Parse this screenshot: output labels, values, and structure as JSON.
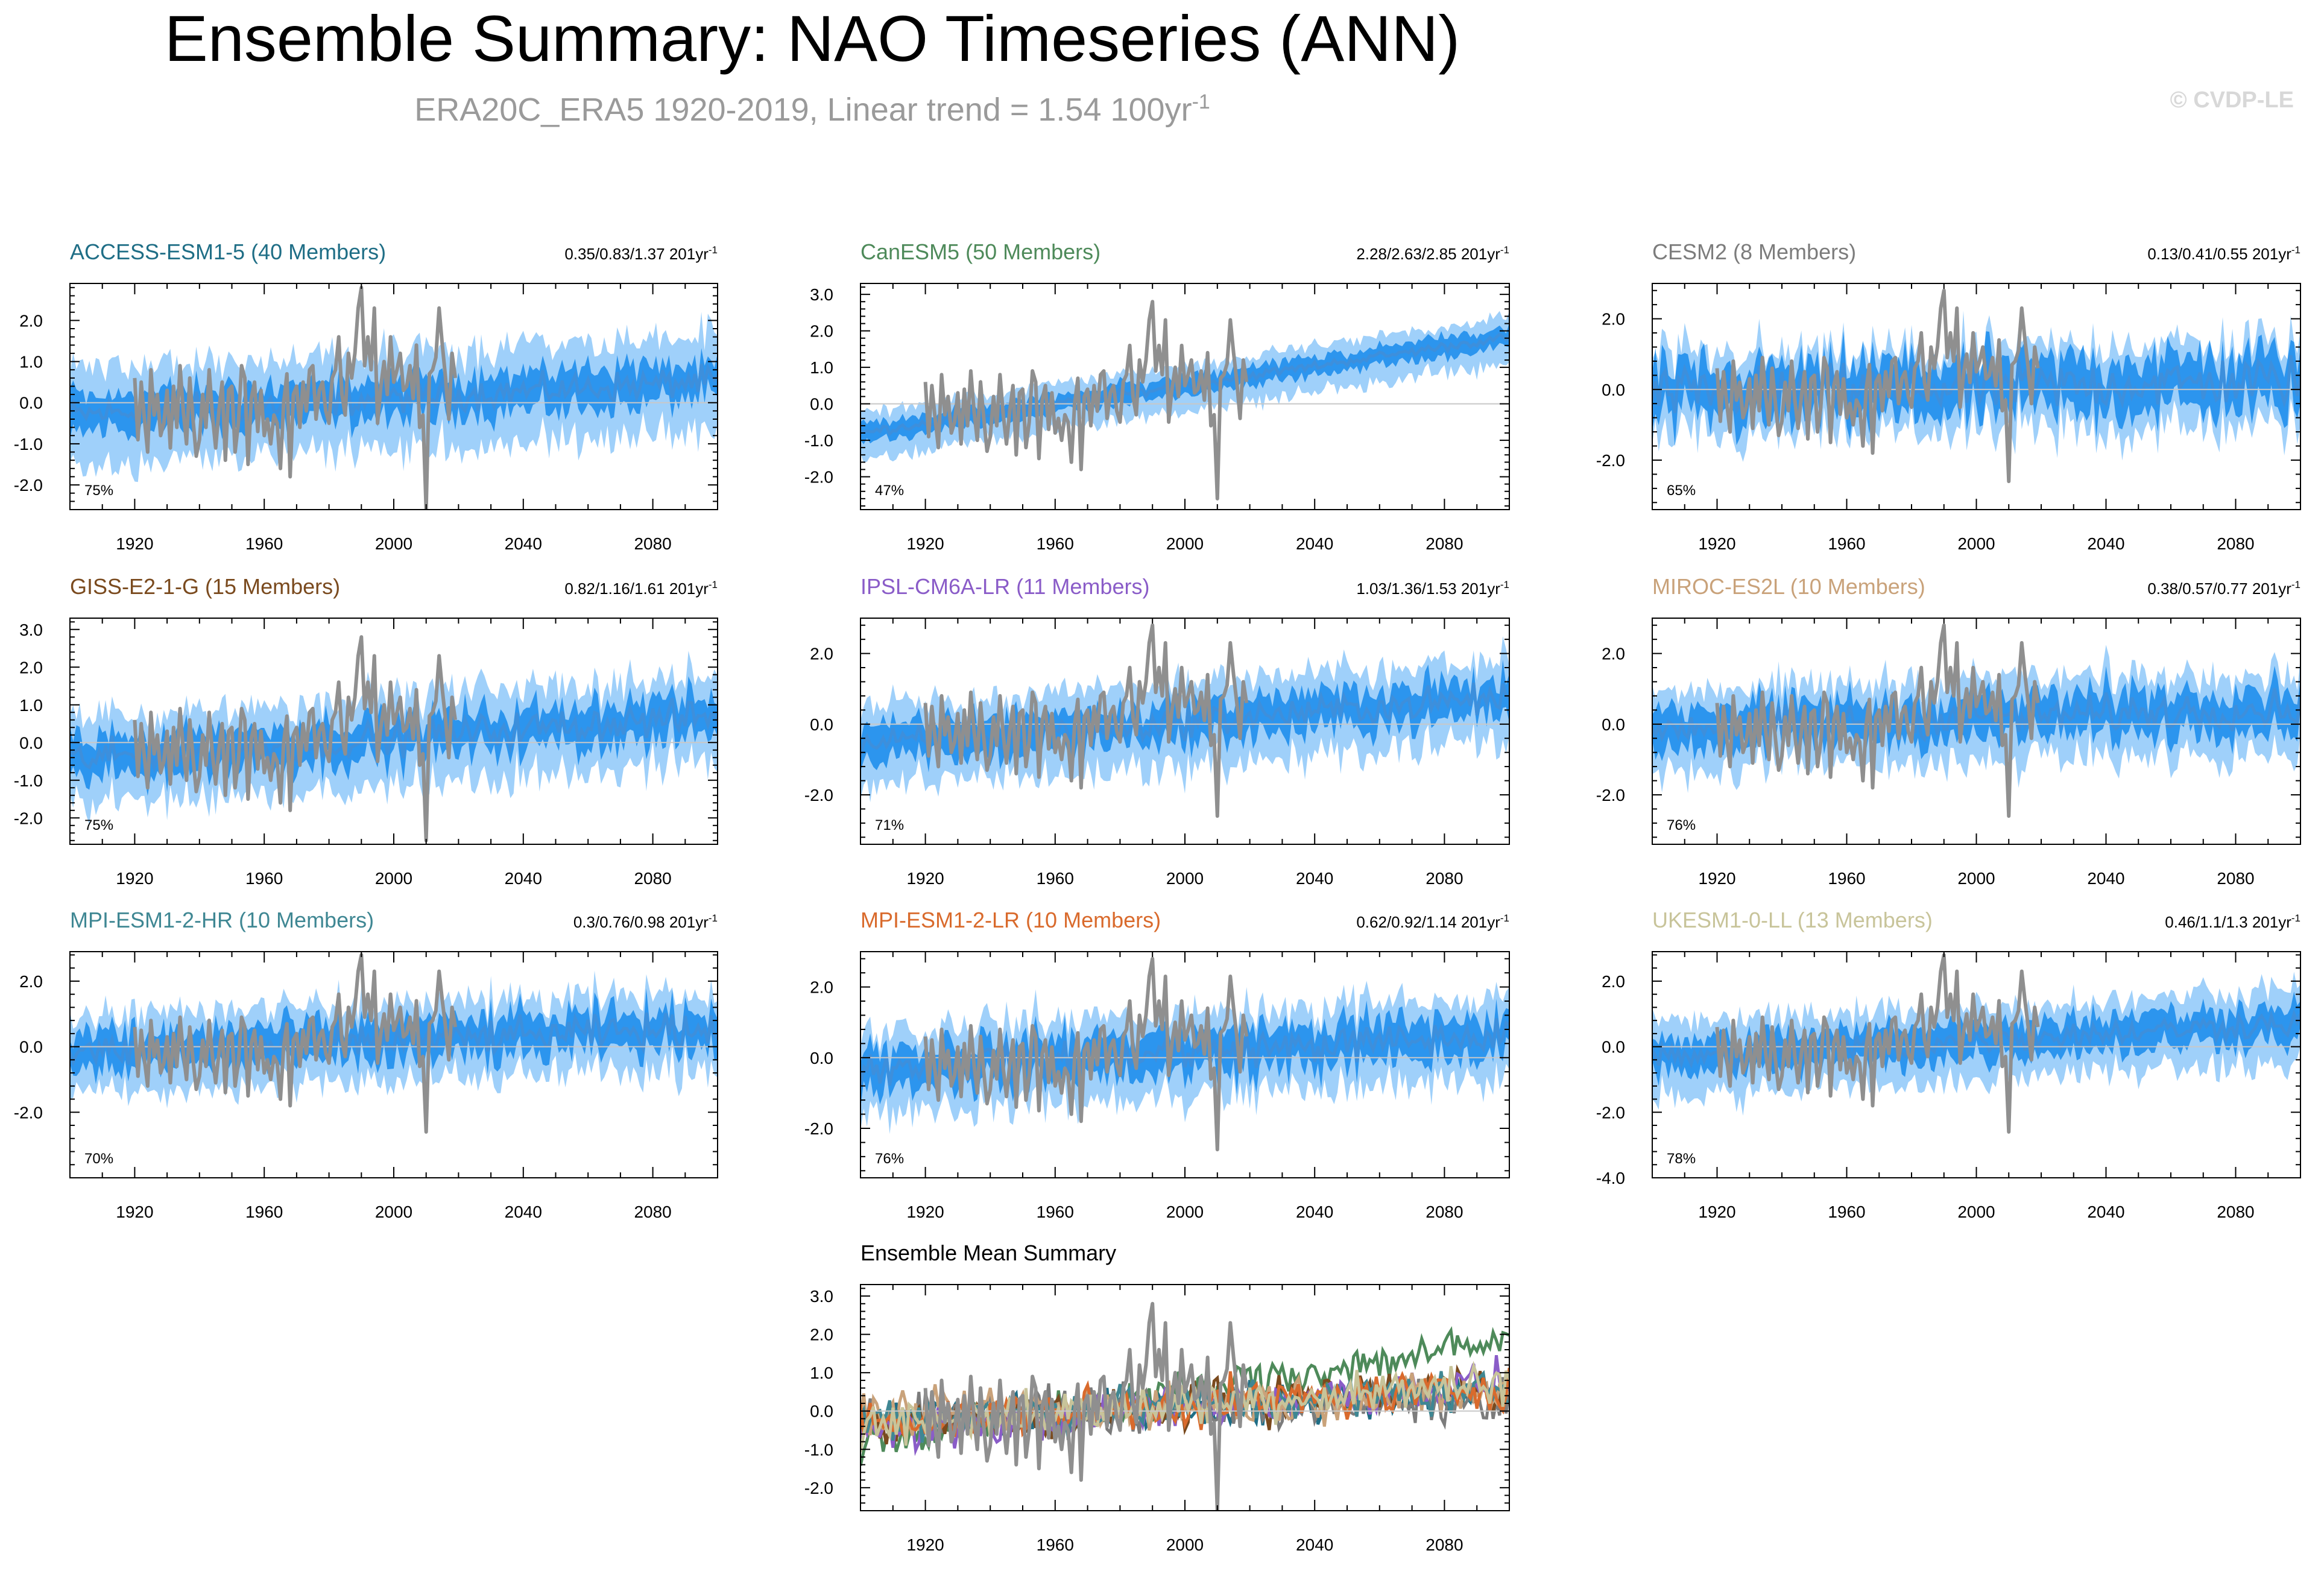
{
  "header": {
    "title": "Ensemble Summary: NAO Timeseries (ANN)",
    "subtitle": "ERA20C_ERA5 1920-2019, Linear trend = 1.54 100yr",
    "subtitle_exp": "-1",
    "copyright": "© CVDP-LE"
  },
  "colors": {
    "band_outer": "#9fd0fa",
    "band_inner": "#2c95ee",
    "mean_line": "#3d8fdc",
    "obs_line": "#8f8f8f"
  },
  "chart_data": [
    {
      "type": "area",
      "title": "ACCESS-ESM1-5 (40 Members)",
      "title_color": "#1f6e86",
      "trend": "0.35/0.83/1.37 201yr",
      "trend_exp": "-1",
      "percent": "75%",
      "xlim": [
        1900,
        2100
      ],
      "ylim": [
        -2.6,
        2.9
      ],
      "yticks": [
        -2,
        -1,
        0,
        1,
        2
      ],
      "ytick_labels": [
        "-2.0",
        "-1.0",
        "0.0",
        "1.0",
        "2.0"
      ],
      "xticks": [
        1920,
        1960,
        2000,
        2040,
        2080
      ],
      "ens_trend": 0.83,
      "ens_start": -0.3,
      "spread": 1.1,
      "inner": 0.45,
      "noise": 0.18,
      "zero_line": true
    },
    {
      "type": "area",
      "title": "CanESM5 (50 Members)",
      "title_color": "#4e8a5a",
      "trend": "2.28/2.63/2.85 201yr",
      "trend_exp": "-1",
      "percent": "47%",
      "xlim": [
        1900,
        2100
      ],
      "ylim": [
        -2.9,
        3.3
      ],
      "yticks": [
        -2,
        -1,
        0,
        1,
        2,
        3
      ],
      "ytick_labels": [
        "-2.0",
        "-1.0",
        "0.0",
        "1.0",
        "2.0",
        "3.0"
      ],
      "xticks": [
        1920,
        1960,
        2000,
        2040,
        2080
      ],
      "ens_trend": 2.63,
      "ens_start": -0.8,
      "spread": 0.55,
      "inner": 0.25,
      "noise": 0.06,
      "zero_line": true
    },
    {
      "type": "area",
      "title": "CESM2 (8 Members)",
      "title_color": "#7c7c7c",
      "trend": "0.13/0.41/0.55 201yr",
      "trend_exp": "-1",
      "percent": "65%",
      "xlim": [
        1900,
        2100
      ],
      "ylim": [
        -3.4,
        3.0
      ],
      "yticks": [
        -2,
        0,
        2
      ],
      "ytick_labels": [
        "-2.0",
        "0.0",
        "2.0"
      ],
      "xticks": [
        1920,
        1960,
        2000,
        2040,
        2080
      ],
      "ens_trend": 0.41,
      "ens_start": -0.15,
      "spread": 1.1,
      "inner": 0.7,
      "noise": 0.35,
      "zero_line": true
    },
    {
      "type": "area",
      "title": "GISS-E2-1-G (15 Members)",
      "title_color": "#7a4a1e",
      "trend": "0.82/1.16/1.61 201yr",
      "trend_exp": "-1",
      "percent": "75%",
      "xlim": [
        1900,
        2100
      ],
      "ylim": [
        -2.7,
        3.3
      ],
      "yticks": [
        -2,
        -1,
        0,
        1,
        2,
        3
      ],
      "ytick_labels": [
        "-2.0",
        "-1.0",
        "0.0",
        "1.0",
        "2.0",
        "3.0"
      ],
      "xticks": [
        1920,
        1960,
        2000,
        2040,
        2080
      ],
      "ens_trend": 1.16,
      "ens_start": -0.45,
      "spread": 1.1,
      "inner": 0.5,
      "noise": 0.22,
      "zero_line": true
    },
    {
      "type": "area",
      "title": "IPSL-CM6A-LR (11 Members)",
      "title_color": "#8a5cc8",
      "trend": "1.03/1.36/1.53 201yr",
      "trend_exp": "-1",
      "percent": "71%",
      "xlim": [
        1900,
        2100
      ],
      "ylim": [
        -3.4,
        3.0
      ],
      "yticks": [
        -2,
        0,
        2
      ],
      "ytick_labels": [
        "-2.0",
        "0.0",
        "2.0"
      ],
      "xticks": [
        1920,
        1960,
        2000,
        2040,
        2080
      ],
      "ens_trend": 1.36,
      "ens_start": -0.6,
      "spread": 1.1,
      "inner": 0.5,
      "noise": 0.22,
      "zero_line": true
    },
    {
      "type": "area",
      "title": "MIROC-ES2L (10 Members)",
      "title_color": "#c9a27a",
      "trend": "0.38/0.57/0.77 201yr",
      "trend_exp": "-1",
      "percent": "76%",
      "xlim": [
        1900,
        2100
      ],
      "ylim": [
        -3.4,
        3.0
      ],
      "yticks": [
        -2,
        0,
        2
      ],
      "ytick_labels": [
        "-2.0",
        "0.0",
        "2.0"
      ],
      "xticks": [
        1920,
        1960,
        2000,
        2040,
        2080
      ],
      "ens_trend": 0.57,
      "ens_start": -0.1,
      "spread": 1.1,
      "inner": 0.55,
      "noise": 0.25,
      "zero_line": true
    },
    {
      "type": "area",
      "title": "MPI-ESM1-2-HR (10 Members)",
      "title_color": "#3f8793",
      "trend": "0.3/0.76/0.98 201yr",
      "trend_exp": "-1",
      "percent": "70%",
      "xlim": [
        1900,
        2100
      ],
      "ylim": [
        -4.0,
        2.9
      ],
      "yticks": [
        -2,
        0,
        2
      ],
      "ytick_labels": [
        "-2.0",
        "0.0",
        "2.0"
      ],
      "xticks": [
        1920,
        1960,
        2000,
        2040,
        2080
      ],
      "ens_trend": 0.76,
      "ens_start": -0.2,
      "spread": 1.1,
      "inner": 0.55,
      "noise": 0.25,
      "zero_line": true
    },
    {
      "type": "area",
      "title": "MPI-ESM1-2-LR (10 Members)",
      "title_color": "#d96a2c",
      "trend": "0.62/0.92/1.14 201yr",
      "trend_exp": "-1",
      "percent": "76%",
      "xlim": [
        1900,
        2100
      ],
      "ylim": [
        -3.4,
        3.0
      ],
      "yticks": [
        -2,
        0,
        2
      ],
      "ytick_labels": [
        "-2.0",
        "0.0",
        "2.0"
      ],
      "xticks": [
        1920,
        1960,
        2000,
        2040,
        2080
      ],
      "ens_trend": 0.92,
      "ens_start": -0.3,
      "spread": 1.1,
      "inner": 0.55,
      "noise": 0.25,
      "zero_line": true
    },
    {
      "type": "area",
      "title": "UKESM1-0-LL (13 Members)",
      "title_color": "#c8c49a",
      "trend": "0.46/1.1/1.3 201yr",
      "trend_exp": "-1",
      "percent": "78%",
      "xlim": [
        1900,
        2100
      ],
      "ylim": [
        -4.0,
        2.9
      ],
      "yticks": [
        -4,
        -2,
        0,
        2
      ],
      "ytick_labels": [
        "-4.0",
        "-2.0",
        "0.0",
        "2.0"
      ],
      "xticks": [
        1920,
        1960,
        2000,
        2040,
        2080
      ],
      "ens_trend": 1.1,
      "ens_start": -0.35,
      "spread": 1.05,
      "inner": 0.5,
      "noise": 0.2,
      "zero_line": true
    },
    {
      "type": "line",
      "title": "Ensemble Mean Summary",
      "title_color": "#000000",
      "xlim": [
        1900,
        2100
      ],
      "ylim": [
        -2.6,
        3.3
      ],
      "yticks": [
        -2,
        -1,
        0,
        1,
        2,
        3
      ],
      "ytick_labels": [
        "-2.0",
        "-1.0",
        "0.0",
        "1.0",
        "2.0",
        "3.0"
      ],
      "xticks": [
        1920,
        1960,
        2000,
        2040,
        2080
      ],
      "zero_line": true,
      "series": [
        {
          "name": "ACCESS-ESM1-5",
          "color": "#1f6e86",
          "start": -0.3,
          "trend": 0.83
        },
        {
          "name": "CanESM5",
          "color": "#4e8a5a",
          "start": -0.8,
          "trend": 2.63
        },
        {
          "name": "CESM2",
          "color": "#7c7c7c",
          "start": -0.15,
          "trend": 0.41
        },
        {
          "name": "GISS-E2-1-G",
          "color": "#7a4a1e",
          "start": -0.45,
          "trend": 1.16
        },
        {
          "name": "IPSL-CM6A-LR",
          "color": "#8a5cc8",
          "start": -0.6,
          "trend": 1.36
        },
        {
          "name": "MIROC-ES2L",
          "color": "#c9a27a",
          "start": -0.1,
          "trend": 0.57
        },
        {
          "name": "MPI-ESM1-2-HR",
          "color": "#3f8793",
          "start": -0.2,
          "trend": 0.76
        },
        {
          "name": "MPI-ESM1-2-LR",
          "color": "#d96a2c",
          "start": -0.3,
          "trend": 0.92
        },
        {
          "name": "UKESM1-0-LL",
          "color": "#c8c49a",
          "start": -0.35,
          "trend": 1.1
        }
      ]
    }
  ],
  "obs": {
    "name": "ERA20C_ERA5",
    "years": [
      1920,
      1921,
      1922,
      1923,
      1924,
      1925,
      1926,
      1927,
      1928,
      1929,
      1930,
      1931,
      1932,
      1933,
      1934,
      1935,
      1936,
      1937,
      1938,
      1939,
      1940,
      1941,
      1942,
      1943,
      1944,
      1945,
      1946,
      1947,
      1948,
      1949,
      1950,
      1951,
      1952,
      1953,
      1954,
      1955,
      1956,
      1957,
      1958,
      1959,
      1960,
      1961,
      1962,
      1963,
      1964,
      1965,
      1966,
      1967,
      1968,
      1969,
      1970,
      1971,
      1972,
      1973,
      1974,
      1975,
      1976,
      1977,
      1978,
      1979,
      1980,
      1981,
      1982,
      1983,
      1984,
      1985,
      1986,
      1987,
      1988,
      1989,
      1990,
      1991,
      1992,
      1993,
      1994,
      1995,
      1996,
      1997,
      1998,
      1999,
      2000,
      2001,
      2002,
      2003,
      2004,
      2005,
      2006,
      2007,
      2008,
      2009,
      2010,
      2011,
      2012,
      2013,
      2014,
      2015,
      2016,
      2017,
      2018,
      2019
    ],
    "values": [
      0.6,
      -0.9,
      0.5,
      -0.4,
      -1.2,
      0.8,
      -0.3,
      0.2,
      -0.8,
      -0.5,
      0.3,
      -1.1,
      0.4,
      -0.6,
      0.9,
      -0.2,
      -1.0,
      0.6,
      -0.4,
      -1.3,
      -0.9,
      0.2,
      -0.6,
      0.8,
      -0.3,
      -1.1,
      -0.2,
      0.5,
      -1.4,
      0.3,
      0.4,
      -1.2,
      -0.5,
      0.9,
      0.6,
      -1.5,
      0.1,
      0.5,
      -0.7,
      0.3,
      -0.8,
      -0.4,
      -1.0,
      -0.3,
      -0.5,
      -1.6,
      0.0,
      0.7,
      -1.8,
      0.2,
      0.4,
      -0.6,
      0.5,
      -0.2,
      0.8,
      0.9,
      -0.4,
      0.3,
      0.5,
      -0.2,
      -0.5,
      0.6,
      0.8,
      1.6,
      0.2,
      -0.3,
      1.2,
      0.6,
      1.2,
      2.3,
      2.8,
      0.9,
      1.6,
      0.8,
      2.3,
      -0.5,
      0.4,
      1.0,
      0.2,
      1.6,
      0.5,
      0.8,
      1.2,
      0.3,
      0.4,
      0.9,
      0.1,
      1.4,
      -0.6,
      -0.3,
      -2.6,
      0.7,
      0.8,
      1.1,
      2.3,
      1.4,
      0.6,
      -0.4,
      1.2,
      0.6
    ]
  }
}
